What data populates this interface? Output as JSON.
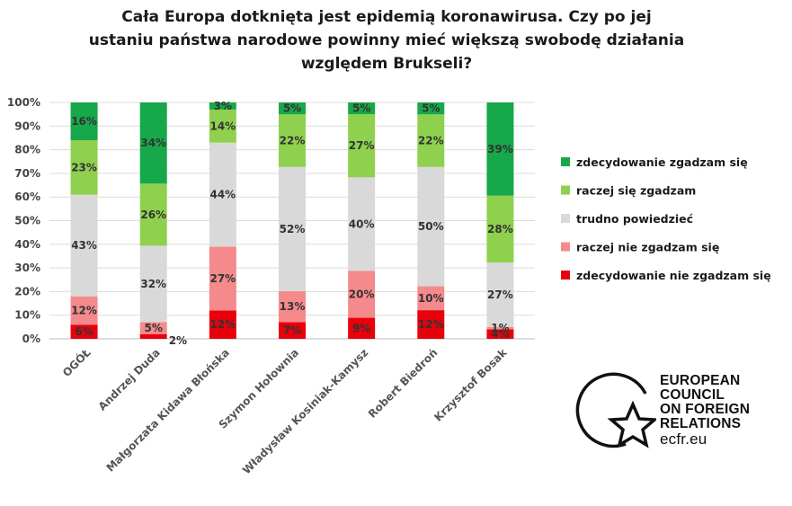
{
  "chart_data": {
    "type": "bar",
    "stacked": true,
    "orientation": "vertical",
    "title_lines": [
      "Cała Europa dotknięta jest epidemią koronawirusa. Czy po jej",
      "ustaniu państwa narodowe powinny mieć większą swobodę działania",
      "względem Brukseli?"
    ],
    "categories": [
      "OGÓŁ",
      "Andrzej Duda",
      "Małgorzata Kidawa Błońska",
      "Szymon Hołownia",
      "Władysław Kosiniak-Kamysz",
      "Robert Biedroń",
      "Krzysztof Bosak"
    ],
    "ylim": [
      0,
      100
    ],
    "y_ticks": [
      "0%",
      "10%",
      "20%",
      "30%",
      "40%",
      "50%",
      "60%",
      "70%",
      "80%",
      "90%",
      "100%"
    ],
    "grid": true,
    "legend_position": "right",
    "series": [
      {
        "name": "zdecydowanie nie zgadzam się",
        "color": "#e8000b",
        "values": [
          6,
          2,
          12,
          7,
          9,
          12,
          4
        ],
        "labels": [
          "6%",
          "2%",
          "12%",
          "7%",
          "9%",
          "12%",
          "4%"
        ]
      },
      {
        "name": "raczej nie zgadzam się",
        "color": "#f58a8d",
        "values": [
          12,
          5,
          27,
          13,
          20,
          10,
          1
        ],
        "labels": [
          "12%",
          "5%",
          "27%",
          "13%",
          "20%",
          "10%",
          "1%"
        ]
      },
      {
        "name": "trudno powiedzieć",
        "color": "#d9d9d9",
        "values": [
          43,
          32,
          44,
          52,
          40,
          50,
          27
        ],
        "labels": [
          "43%",
          "32%",
          "44%",
          "52%",
          "40%",
          "50%",
          "27%"
        ]
      },
      {
        "name": "raczej się zgadzam",
        "color": "#8fd14f",
        "values": [
          23,
          26,
          14,
          22,
          27,
          22,
          28
        ],
        "labels": [
          "23%",
          "26%",
          "14%",
          "22%",
          "27%",
          "22%",
          "28%"
        ]
      },
      {
        "name": "zdecydowanie zgadzam się",
        "color": "#17a84a",
        "values": [
          16,
          34,
          3,
          5,
          5,
          5,
          39
        ],
        "labels": [
          "16%",
          "34%",
          "3%",
          "5%",
          "5%",
          "5%",
          "39%"
        ]
      }
    ],
    "legend_order": [
      "zdecydowanie zgadzam się",
      "raczej się zgadzam",
      "trudno powiedzieć",
      "raczej nie zgadzam się",
      "zdecydowanie nie zgadzam się"
    ]
  },
  "logo": {
    "lines": [
      "EUROPEAN",
      "COUNCIL",
      "ON FOREIGN",
      "RELATIONS"
    ],
    "url": "ecfr.eu",
    "icon": "circle-star-icon"
  }
}
